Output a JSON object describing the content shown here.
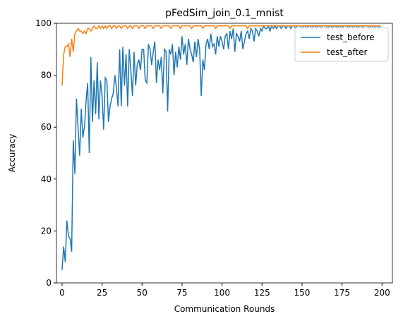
{
  "chart_data": {
    "type": "line",
    "title": "pFedSim_join_0.1_mnist",
    "xlabel": "Communication Rounds",
    "ylabel": "Accuracy",
    "xlim": [
      -3.5,
      206.5
    ],
    "ylim": [
      0,
      100
    ],
    "xticks": [
      0,
      25,
      50,
      75,
      100,
      125,
      150,
      175,
      200
    ],
    "yticks": [
      0,
      20,
      40,
      60,
      80,
      100
    ],
    "legend": "upper right",
    "x": [
      0,
      1,
      2,
      3,
      4,
      5,
      6,
      7,
      8,
      9,
      10,
      11,
      12,
      13,
      14,
      15,
      16,
      17,
      18,
      19,
      20,
      21,
      22,
      23,
      24,
      25,
      26,
      27,
      28,
      29,
      30,
      31,
      32,
      33,
      34,
      35,
      36,
      37,
      38,
      39,
      40,
      41,
      42,
      43,
      44,
      45,
      46,
      47,
      48,
      49,
      50,
      51,
      52,
      53,
      54,
      55,
      56,
      57,
      58,
      59,
      60,
      61,
      62,
      63,
      64,
      65,
      66,
      67,
      68,
      69,
      70,
      71,
      72,
      73,
      74,
      75,
      76,
      77,
      78,
      79,
      80,
      81,
      82,
      83,
      84,
      85,
      86,
      87,
      88,
      89,
      90,
      91,
      92,
      93,
      94,
      95,
      96,
      97,
      98,
      99,
      100,
      101,
      102,
      103,
      104,
      105,
      106,
      107,
      108,
      109,
      110,
      111,
      112,
      113,
      114,
      115,
      116,
      117,
      118,
      119,
      120,
      121,
      122,
      123,
      124,
      125,
      126,
      127,
      128,
      129,
      130,
      131,
      132,
      133,
      134,
      135,
      136,
      137,
      138,
      139,
      140,
      141,
      142,
      143,
      144,
      145,
      146,
      147,
      148,
      149,
      150,
      151,
      152,
      153,
      154,
      155,
      156,
      157,
      158,
      159,
      160,
      161,
      162,
      163,
      164,
      165,
      166,
      167,
      168,
      169,
      170,
      171,
      172,
      173,
      174,
      175,
      176,
      177,
      178,
      179,
      180,
      181,
      182,
      183,
      184,
      185,
      186,
      187,
      188,
      189,
      190,
      191,
      192,
      193,
      194,
      195,
      196,
      197,
      198,
      199
    ],
    "series": [
      {
        "name": "test_before",
        "color": "#1f77b4",
        "values": [
          5,
          14,
          8,
          24,
          18,
          17,
          12,
          55,
          42,
          71,
          60,
          49,
          67,
          56,
          60,
          70,
          77,
          50,
          87,
          62,
          78,
          65,
          85,
          63,
          78,
          72,
          59,
          79,
          78,
          62,
          68,
          71,
          73,
          80,
          75,
          68,
          90,
          68,
          91,
          76,
          88,
          68,
          90,
          82,
          72,
          89,
          76,
          84,
          86,
          82,
          90,
          90,
          78,
          77,
          92,
          90,
          84,
          89,
          93,
          77,
          86,
          82,
          87,
          73,
          90,
          89,
          66,
          90,
          88,
          92,
          80,
          89,
          83,
          91,
          86,
          95,
          88,
          92,
          84,
          94,
          90,
          88,
          85,
          93,
          87,
          94,
          90,
          72,
          86,
          82,
          92,
          94,
          90,
          96,
          91,
          92,
          88,
          95,
          91,
          95,
          93,
          90,
          95,
          96,
          90,
          97,
          94,
          98,
          89,
          96,
          95,
          93,
          97,
          90,
          93,
          96,
          97,
          94,
          98,
          97,
          93,
          98,
          97,
          95,
          98,
          97,
          99,
          98,
          98,
          99,
          97,
          99,
          98,
          99,
          98,
          99,
          99,
          98,
          99,
          99,
          98,
          99,
          99,
          98,
          99,
          99,
          98,
          99,
          99,
          99,
          98,
          99,
          99,
          98,
          99,
          99,
          98,
          99,
          99,
          98,
          99,
          99,
          98,
          99,
          99,
          99,
          98,
          99,
          99,
          98,
          99,
          99,
          98,
          99,
          99,
          98,
          99,
          99,
          99,
          98,
          99,
          99,
          98,
          99,
          99,
          98,
          99,
          99,
          98,
          99,
          99,
          99,
          98,
          99,
          99,
          98,
          99,
          99,
          98,
          99
        ]
      },
      {
        "name": "test_after",
        "color": "#ff7f0e",
        "values": [
          76,
          88,
          91,
          91,
          92,
          87,
          94,
          89,
          96,
          97,
          98,
          97,
          97,
          96,
          97,
          96,
          98,
          98,
          97,
          98,
          99,
          98,
          98,
          99,
          98,
          99,
          98,
          99,
          98,
          99,
          99,
          98,
          99,
          99,
          98,
          99,
          99,
          98,
          99,
          99,
          99,
          98,
          99,
          99,
          98,
          99,
          99,
          99,
          98,
          99,
          99,
          99,
          98,
          99,
          99,
          99,
          99,
          98,
          99,
          99,
          99,
          99,
          98,
          99,
          99,
          99,
          99,
          99,
          98,
          99,
          99,
          99,
          99,
          99,
          98,
          99,
          99,
          99,
          99,
          99,
          99,
          98,
          99,
          99,
          99,
          99,
          99,
          99,
          98,
          99,
          99,
          99,
          99,
          99,
          99,
          99,
          98,
          99,
          99,
          99,
          99,
          99,
          99,
          99,
          99,
          98,
          99,
          99,
          99,
          99,
          99,
          99,
          99,
          99,
          99,
          99,
          98,
          99,
          99,
          99,
          99,
          99,
          99,
          99,
          99,
          99,
          99,
          99,
          99,
          99,
          99,
          99,
          99,
          99,
          99,
          99,
          99,
          99,
          99,
          99,
          99,
          99,
          99,
          99,
          99,
          99,
          99,
          99,
          99,
          99,
          99,
          99,
          99,
          99,
          99,
          99,
          99,
          99,
          99,
          99,
          99,
          99,
          99,
          99,
          99,
          99,
          99,
          99,
          99,
          99,
          99,
          99,
          99,
          99,
          99,
          99,
          99,
          99,
          99,
          99,
          99,
          99,
          99,
          99,
          99,
          99,
          99,
          99,
          99,
          99,
          99,
          99,
          99,
          99,
          99,
          99,
          99,
          99,
          99,
          99
        ]
      }
    ]
  }
}
